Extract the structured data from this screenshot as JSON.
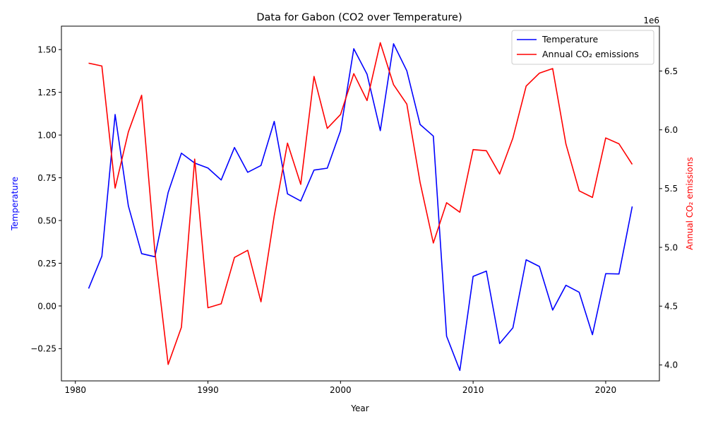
{
  "chart_data": {
    "type": "line",
    "title": "Data for Gabon (CO2 over Temperature)",
    "xlabel": "Year",
    "ylabel_left": "Temperature",
    "ylabel_right": "Annual CO₂ emissions",
    "right_offset_text": "1e6",
    "xlim": [
      1978.95,
      2024.05
    ],
    "ylim_left": [
      -0.4385,
      1.6372
    ],
    "ylim_right": [
      3.864,
      6.882
    ],
    "xticks": [
      1980,
      1990,
      2000,
      2010,
      2020
    ],
    "yticks_left": [
      -0.25,
      0.0,
      0.25,
      0.5,
      0.75,
      1.0,
      1.25,
      1.5
    ],
    "yticks_left_labels": [
      "−0.25",
      "0.00",
      "0.25",
      "0.50",
      "0.75",
      "1.00",
      "1.25",
      "1.50"
    ],
    "yticks_right": [
      4.0,
      4.5,
      5.0,
      5.5,
      6.0,
      6.5
    ],
    "yticks_right_labels": [
      "4.0",
      "4.5",
      "5.0",
      "5.5",
      "6.0",
      "6.5"
    ],
    "legend_position": "top-right",
    "grid": false,
    "x": [
      1981,
      1982,
      1983,
      1984,
      1985,
      1986,
      1987,
      1988,
      1989,
      1990,
      1991,
      1992,
      1993,
      1994,
      1995,
      1996,
      1997,
      1998,
      1999,
      2000,
      2001,
      2002,
      2003,
      2004,
      2005,
      2006,
      2007,
      2008,
      2009,
      2010,
      2011,
      2012,
      2013,
      2014,
      2015,
      2016,
      2017,
      2018,
      2019,
      2020,
      2021,
      2022
    ],
    "series": [
      {
        "name": "Temperature",
        "axis": "left",
        "color": "#0000ff",
        "values": [
          0.102,
          0.291,
          1.12,
          0.585,
          0.306,
          0.288,
          0.664,
          0.894,
          0.836,
          0.807,
          0.737,
          0.927,
          0.782,
          0.822,
          1.08,
          0.656,
          0.614,
          0.795,
          0.806,
          1.025,
          1.505,
          1.356,
          1.026,
          1.534,
          1.376,
          1.062,
          0.994,
          -0.177,
          -0.377,
          0.173,
          0.204,
          -0.22,
          -0.128,
          0.27,
          0.231,
          -0.024,
          0.121,
          0.08,
          -0.168,
          0.189,
          0.187,
          0.582
        ]
      },
      {
        "name": "Annual CO₂ emissions",
        "axis": "right",
        "color": "#ff0000",
        "values": [
          6.567,
          6.543,
          5.504,
          5.983,
          6.294,
          4.963,
          4.004,
          4.32,
          5.751,
          4.486,
          4.52,
          4.914,
          4.975,
          4.537,
          5.268,
          5.887,
          5.536,
          6.454,
          6.012,
          6.13,
          6.478,
          6.249,
          6.741,
          6.384,
          6.219,
          5.553,
          5.037,
          5.38,
          5.299,
          5.832,
          5.822,
          5.624,
          5.93,
          6.372,
          6.482,
          6.521,
          5.879,
          5.481,
          5.425,
          5.931,
          5.881,
          5.706
        ]
      }
    ]
  }
}
